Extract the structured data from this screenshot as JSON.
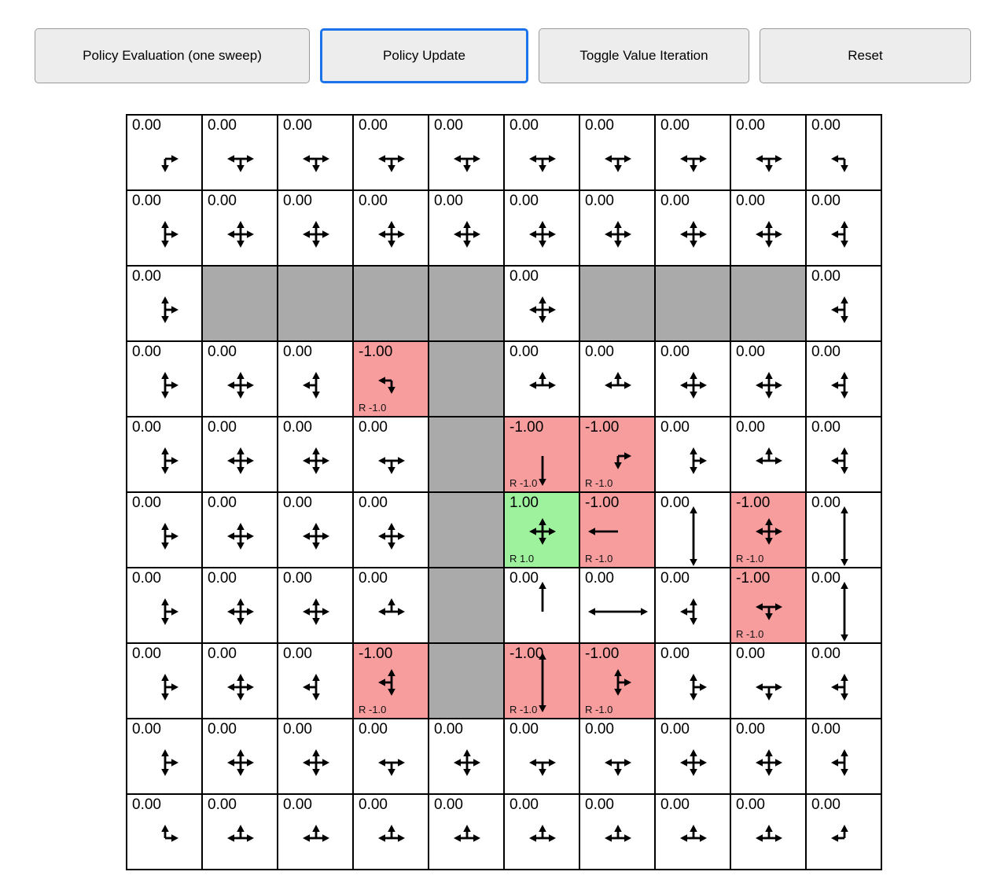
{
  "toolbar": {
    "buttons": [
      {
        "label": "Policy Evaluation (one sweep)"
      },
      {
        "label": "Policy Update"
      },
      {
        "label": "Toggle Value Iteration"
      },
      {
        "label": "Reset"
      }
    ],
    "active_index": 1,
    "active_border_color": "#1a73e8"
  },
  "grid": {
    "rows": 10,
    "cols": 10,
    "cell_size": 96,
    "colors": {
      "cell": "#ffffff",
      "wall": "#aaaaaa",
      "negative_reward": "#f89d9d",
      "positive_reward": "#9ef29e",
      "border": "#000000",
      "arrow": "#000000"
    },
    "cells": [
      [
        {
          "t": "e",
          "v": "0.00",
          "a": [
            "d",
            "r"
          ]
        },
        {
          "t": "e",
          "v": "0.00",
          "a": [
            "l",
            "r",
            "d"
          ]
        },
        {
          "t": "e",
          "v": "0.00",
          "a": [
            "l",
            "r",
            "d"
          ]
        },
        {
          "t": "e",
          "v": "0.00",
          "a": [
            "l",
            "r",
            "d"
          ]
        },
        {
          "t": "e",
          "v": "0.00",
          "a": [
            "l",
            "r",
            "d"
          ]
        },
        {
          "t": "e",
          "v": "0.00",
          "a": [
            "l",
            "r",
            "d"
          ]
        },
        {
          "t": "e",
          "v": "0.00",
          "a": [
            "l",
            "r",
            "d"
          ]
        },
        {
          "t": "e",
          "v": "0.00",
          "a": [
            "l",
            "r",
            "d"
          ]
        },
        {
          "t": "e",
          "v": "0.00",
          "a": [
            "l",
            "r",
            "d"
          ]
        },
        {
          "t": "e",
          "v": "0.00",
          "a": [
            "l",
            "d"
          ]
        }
      ],
      [
        {
          "t": "e",
          "v": "0.00",
          "a": [
            "u",
            "d",
            "r"
          ]
        },
        {
          "t": "e",
          "v": "0.00",
          "a": [
            "u",
            "d",
            "l",
            "r"
          ]
        },
        {
          "t": "e",
          "v": "0.00",
          "a": [
            "u",
            "d",
            "l",
            "r"
          ]
        },
        {
          "t": "e",
          "v": "0.00",
          "a": [
            "u",
            "d",
            "l",
            "r"
          ]
        },
        {
          "t": "e",
          "v": "0.00",
          "a": [
            "u",
            "d",
            "l",
            "r"
          ]
        },
        {
          "t": "e",
          "v": "0.00",
          "a": [
            "u",
            "d",
            "l",
            "r"
          ]
        },
        {
          "t": "e",
          "v": "0.00",
          "a": [
            "u",
            "d",
            "l",
            "r"
          ]
        },
        {
          "t": "e",
          "v": "0.00",
          "a": [
            "u",
            "d",
            "l",
            "r"
          ]
        },
        {
          "t": "e",
          "v": "0.00",
          "a": [
            "u",
            "d",
            "l",
            "r"
          ]
        },
        {
          "t": "e",
          "v": "0.00",
          "a": [
            "u",
            "d",
            "l"
          ]
        }
      ],
      [
        {
          "t": "e",
          "v": "0.00",
          "a": [
            "u",
            "d",
            "r"
          ]
        },
        {
          "t": "w"
        },
        {
          "t": "w"
        },
        {
          "t": "w"
        },
        {
          "t": "w"
        },
        {
          "t": "e",
          "v": "0.00",
          "a": [
            "u",
            "d",
            "l",
            "r"
          ]
        },
        {
          "t": "w"
        },
        {
          "t": "w"
        },
        {
          "t": "w"
        },
        {
          "t": "e",
          "v": "0.00",
          "a": [
            "u",
            "d",
            "l"
          ]
        }
      ],
      [
        {
          "t": "e",
          "v": "0.00",
          "a": [
            "u",
            "d",
            "r"
          ]
        },
        {
          "t": "e",
          "v": "0.00",
          "a": [
            "u",
            "d",
            "l",
            "r"
          ]
        },
        {
          "t": "e",
          "v": "0.00",
          "a": [
            "u",
            "d",
            "l"
          ]
        },
        {
          "t": "n",
          "v": "-1.00",
          "rw": "R -1.0",
          "a": [
            "l",
            "d"
          ]
        },
        {
          "t": "w"
        },
        {
          "t": "e",
          "v": "0.00",
          "a": [
            "u",
            "l",
            "r"
          ]
        },
        {
          "t": "e",
          "v": "0.00",
          "a": [
            "u",
            "l",
            "r"
          ]
        },
        {
          "t": "e",
          "v": "0.00",
          "a": [
            "u",
            "d",
            "l",
            "r"
          ]
        },
        {
          "t": "e",
          "v": "0.00",
          "a": [
            "u",
            "d",
            "l",
            "r"
          ]
        },
        {
          "t": "e",
          "v": "0.00",
          "a": [
            "u",
            "d",
            "l"
          ]
        }
      ],
      [
        {
          "t": "e",
          "v": "0.00",
          "a": [
            "u",
            "d",
            "r"
          ]
        },
        {
          "t": "e",
          "v": "0.00",
          "a": [
            "u",
            "d",
            "l",
            "r"
          ]
        },
        {
          "t": "e",
          "v": "0.00",
          "a": [
            "u",
            "d",
            "l",
            "r"
          ]
        },
        {
          "t": "e",
          "v": "0.00",
          "a": [
            "l",
            "r",
            "d"
          ]
        },
        {
          "t": "w"
        },
        {
          "t": "n",
          "v": "-1.00",
          "rw": "R -1.0",
          "a": [
            "d"
          ],
          "L": true
        },
        {
          "t": "n",
          "v": "-1.00",
          "rw": "R -1.0",
          "a": [
            "d",
            "r"
          ]
        },
        {
          "t": "e",
          "v": "0.00",
          "a": [
            "u",
            "d",
            "r"
          ]
        },
        {
          "t": "e",
          "v": "0.00",
          "a": [
            "u",
            "l",
            "r"
          ]
        },
        {
          "t": "e",
          "v": "0.00",
          "a": [
            "u",
            "d",
            "l"
          ]
        }
      ],
      [
        {
          "t": "e",
          "v": "0.00",
          "a": [
            "u",
            "d",
            "r"
          ]
        },
        {
          "t": "e",
          "v": "0.00",
          "a": [
            "u",
            "d",
            "l",
            "r"
          ]
        },
        {
          "t": "e",
          "v": "0.00",
          "a": [
            "u",
            "d",
            "l",
            "r"
          ]
        },
        {
          "t": "e",
          "v": "0.00",
          "a": [
            "u",
            "d",
            "l",
            "r"
          ]
        },
        {
          "t": "w"
        },
        {
          "t": "p",
          "v": "1.00",
          "rw": "R 1.0",
          "a": [
            "u",
            "d",
            "l",
            "r"
          ]
        },
        {
          "t": "n",
          "v": "-1.00",
          "rw": "R -1.0",
          "a": [
            "l"
          ],
          "L": true
        },
        {
          "t": "e",
          "v": "0.00",
          "a": [
            "u",
            "d"
          ],
          "L": true
        },
        {
          "t": "n",
          "v": "-1.00",
          "rw": "R -1.0",
          "a": [
            "u",
            "d",
            "l",
            "r"
          ]
        },
        {
          "t": "e",
          "v": "0.00",
          "a": [
            "u",
            "d"
          ],
          "L": true
        }
      ],
      [
        {
          "t": "e",
          "v": "0.00",
          "a": [
            "u",
            "d",
            "r"
          ]
        },
        {
          "t": "e",
          "v": "0.00",
          "a": [
            "u",
            "d",
            "l",
            "r"
          ]
        },
        {
          "t": "e",
          "v": "0.00",
          "a": [
            "u",
            "d",
            "l",
            "r"
          ]
        },
        {
          "t": "e",
          "v": "0.00",
          "a": [
            "u",
            "l",
            "r"
          ]
        },
        {
          "t": "w"
        },
        {
          "t": "e",
          "v": "0.00",
          "a": [
            "u"
          ],
          "L": true
        },
        {
          "t": "e",
          "v": "0.00",
          "a": [
            "l",
            "r"
          ],
          "L": true
        },
        {
          "t": "e",
          "v": "0.00",
          "a": [
            "u",
            "d",
            "l"
          ]
        },
        {
          "t": "n",
          "v": "-1.00",
          "rw": "R -1.0",
          "a": [
            "l",
            "r",
            "d"
          ]
        },
        {
          "t": "e",
          "v": "0.00",
          "a": [
            "u",
            "d"
          ],
          "L": true
        }
      ],
      [
        {
          "t": "e",
          "v": "0.00",
          "a": [
            "u",
            "d",
            "r"
          ]
        },
        {
          "t": "e",
          "v": "0.00",
          "a": [
            "u",
            "d",
            "l",
            "r"
          ]
        },
        {
          "t": "e",
          "v": "0.00",
          "a": [
            "u",
            "d",
            "l"
          ]
        },
        {
          "t": "n",
          "v": "-1.00",
          "rw": "R -1.0",
          "a": [
            "u",
            "d",
            "l"
          ]
        },
        {
          "t": "w"
        },
        {
          "t": "n",
          "v": "-1.00",
          "rw": "R -1.0",
          "a": [
            "u",
            "d"
          ],
          "L": true
        },
        {
          "t": "n",
          "v": "-1.00",
          "rw": "R -1.0",
          "a": [
            "u",
            "d",
            "r"
          ]
        },
        {
          "t": "e",
          "v": "0.00",
          "a": [
            "u",
            "d",
            "r"
          ]
        },
        {
          "t": "e",
          "v": "0.00",
          "a": [
            "l",
            "r",
            "d"
          ]
        },
        {
          "t": "e",
          "v": "0.00",
          "a": [
            "u",
            "d",
            "l"
          ]
        }
      ],
      [
        {
          "t": "e",
          "v": "0.00",
          "a": [
            "u",
            "d",
            "r"
          ]
        },
        {
          "t": "e",
          "v": "0.00",
          "a": [
            "u",
            "d",
            "l",
            "r"
          ]
        },
        {
          "t": "e",
          "v": "0.00",
          "a": [
            "u",
            "d",
            "l",
            "r"
          ]
        },
        {
          "t": "e",
          "v": "0.00",
          "a": [
            "l",
            "r",
            "d"
          ]
        },
        {
          "t": "e",
          "v": "0.00",
          "a": [
            "u",
            "d",
            "l",
            "r"
          ]
        },
        {
          "t": "e",
          "v": "0.00",
          "a": [
            "l",
            "r",
            "d"
          ]
        },
        {
          "t": "e",
          "v": "0.00",
          "a": [
            "l",
            "r",
            "d"
          ]
        },
        {
          "t": "e",
          "v": "0.00",
          "a": [
            "u",
            "d",
            "l",
            "r"
          ]
        },
        {
          "t": "e",
          "v": "0.00",
          "a": [
            "u",
            "d",
            "l",
            "r"
          ]
        },
        {
          "t": "e",
          "v": "0.00",
          "a": [
            "u",
            "d",
            "l"
          ]
        }
      ],
      [
        {
          "t": "e",
          "v": "0.00",
          "a": [
            "u",
            "r"
          ]
        },
        {
          "t": "e",
          "v": "0.00",
          "a": [
            "u",
            "l",
            "r"
          ]
        },
        {
          "t": "e",
          "v": "0.00",
          "a": [
            "u",
            "l",
            "r"
          ]
        },
        {
          "t": "e",
          "v": "0.00",
          "a": [
            "u",
            "l",
            "r"
          ]
        },
        {
          "t": "e",
          "v": "0.00",
          "a": [
            "u",
            "l",
            "r"
          ]
        },
        {
          "t": "e",
          "v": "0.00",
          "a": [
            "u",
            "l",
            "r"
          ]
        },
        {
          "t": "e",
          "v": "0.00",
          "a": [
            "u",
            "l",
            "r"
          ]
        },
        {
          "t": "e",
          "v": "0.00",
          "a": [
            "u",
            "l",
            "r"
          ]
        },
        {
          "t": "e",
          "v": "0.00",
          "a": [
            "u",
            "l",
            "r"
          ]
        },
        {
          "t": "e",
          "v": "0.00",
          "a": [
            "u",
            "l"
          ]
        }
      ]
    ]
  }
}
